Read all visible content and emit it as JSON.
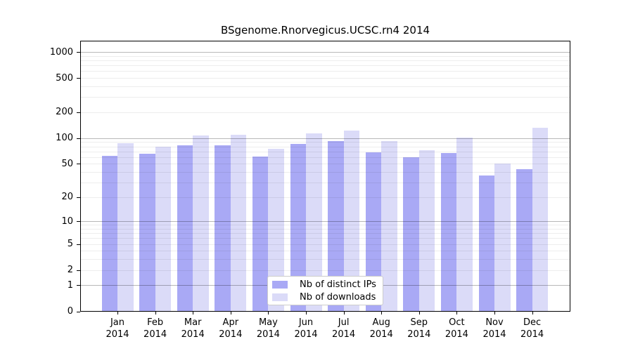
{
  "chart": {
    "title": "BSgenome.Rnorvegicus.UCSC.rn4 2014"
  },
  "chart_data": {
    "type": "bar",
    "title": "BSgenome.Rnorvegicus.UCSC.rn4 2014",
    "scale": "log1p",
    "categories": [
      "Jan",
      "Feb",
      "Mar",
      "Apr",
      "May",
      "Jun",
      "Jul",
      "Aug",
      "Sep",
      "Oct",
      "Nov",
      "Dec"
    ],
    "year": "2014",
    "series": [
      {
        "name": "Nb of distinct IPs",
        "color": "#a9a9f5",
        "values": [
          62,
          66,
          82,
          82,
          61,
          86,
          92,
          68,
          60,
          67,
          36,
          43
        ]
      },
      {
        "name": "Nb of downloads",
        "color": "#dbdbf8",
        "values": [
          88,
          79,
          108,
          110,
          75,
          114,
          123,
          92,
          72,
          102,
          50,
          131
        ]
      }
    ],
    "yticks": [
      0,
      1,
      2,
      5,
      10,
      20,
      50,
      100,
      200,
      500,
      1000
    ],
    "ylim": [
      0,
      1349
    ],
    "xlabel": "",
    "ylabel": "",
    "grid": true,
    "legend_position": "bottom-center",
    "colors": {
      "grid_major": "rgba(0,0,0,0.28)",
      "grid_minor": "rgba(0,0,0,0.07)",
      "axis": "#000000",
      "background": "#ffffff"
    }
  }
}
